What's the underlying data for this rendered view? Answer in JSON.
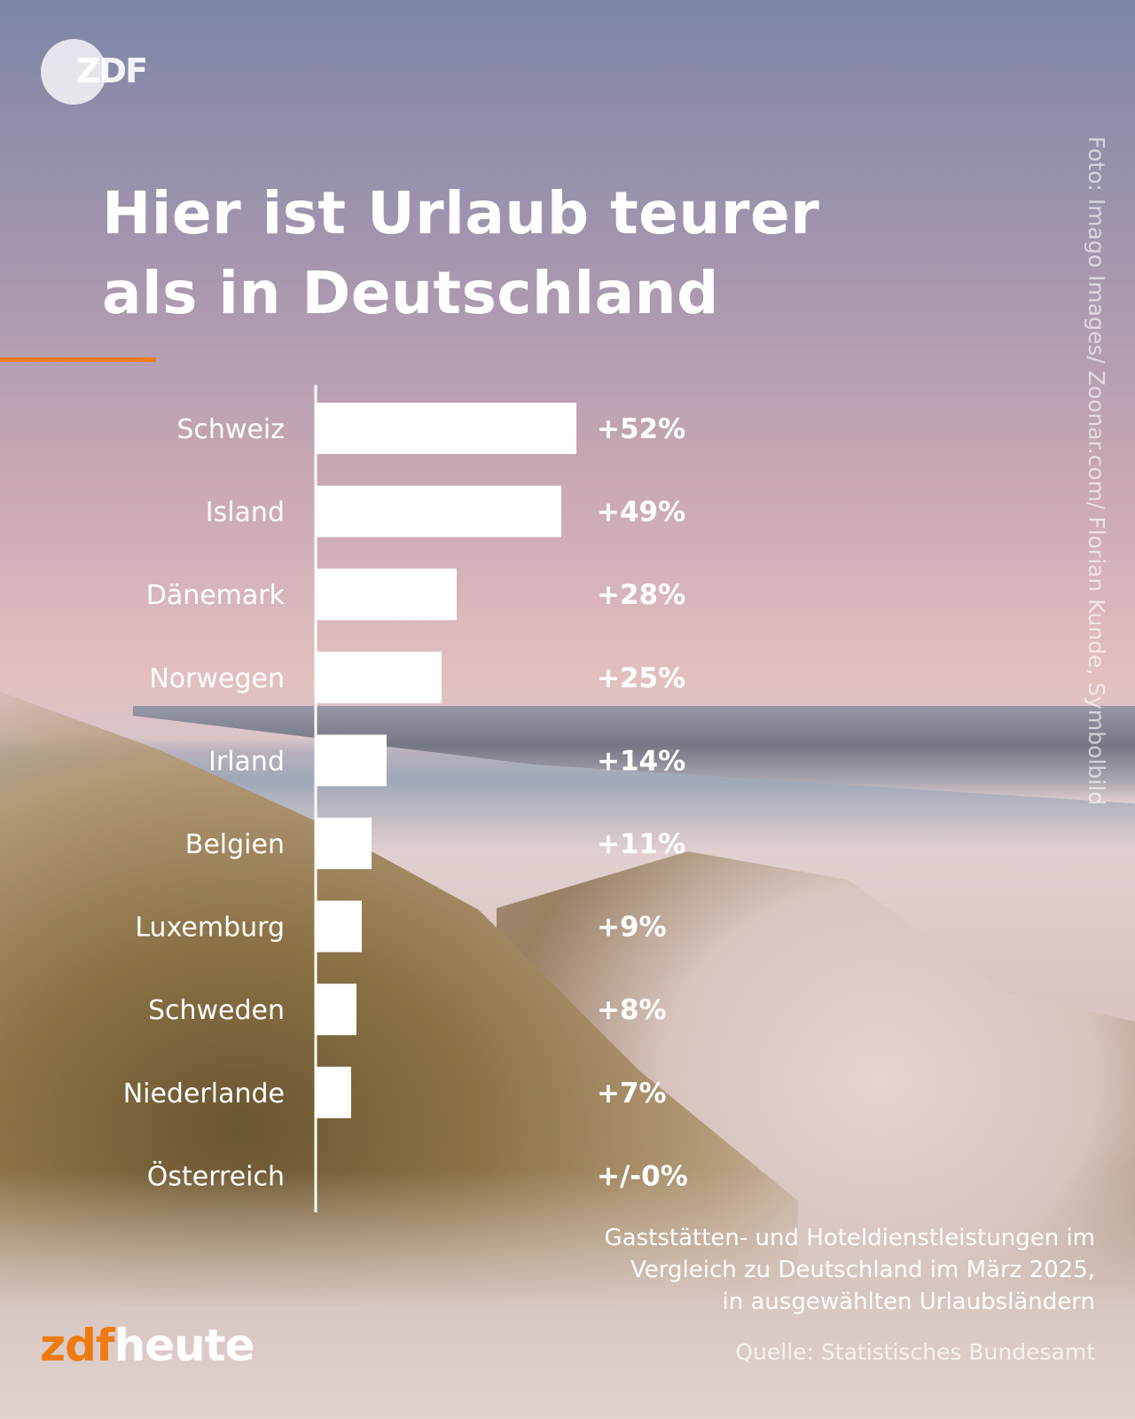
{
  "branding": {
    "top_logo": "ZDF",
    "bottom_logo_part1": "zdf",
    "bottom_logo_part2": "heute",
    "accent_color": "#f07a12"
  },
  "title_line1": "Hier ist Urlaub teurer",
  "title_line2": "als in Deutschland",
  "photo_credit": "Foto: Imago Images/ Zoonar.com/ Florian Kunde, Symbolbild",
  "caption_line1": "Gaststätten- und Hoteldienstleistungen im",
  "caption_line2": "Vergleich zu Deutschland im März 2025,",
  "caption_line3": "in ausgewählten Urlaubsländern",
  "source": "Quelle: Statistisches Bundesamt",
  "chart_data": {
    "type": "bar",
    "orientation": "horizontal",
    "categories": [
      "Schweiz",
      "Island",
      "Dänemark",
      "Norwegen",
      "Irland",
      "Belgien",
      "Luxemburg",
      "Schweden",
      "Niederlande",
      "Österreich"
    ],
    "values": [
      52,
      49,
      28,
      25,
      14,
      11,
      9,
      8,
      7,
      0
    ],
    "value_labels": [
      "+52%",
      "+49%",
      "+28%",
      "+25%",
      "+14%",
      "+11%",
      "+9%",
      "+8%",
      "+7%",
      "+/-0%"
    ],
    "unit": "%",
    "bar_color": "#ffffff",
    "xlim": [
      0,
      52
    ],
    "grid": false,
    "legend": "none"
  }
}
